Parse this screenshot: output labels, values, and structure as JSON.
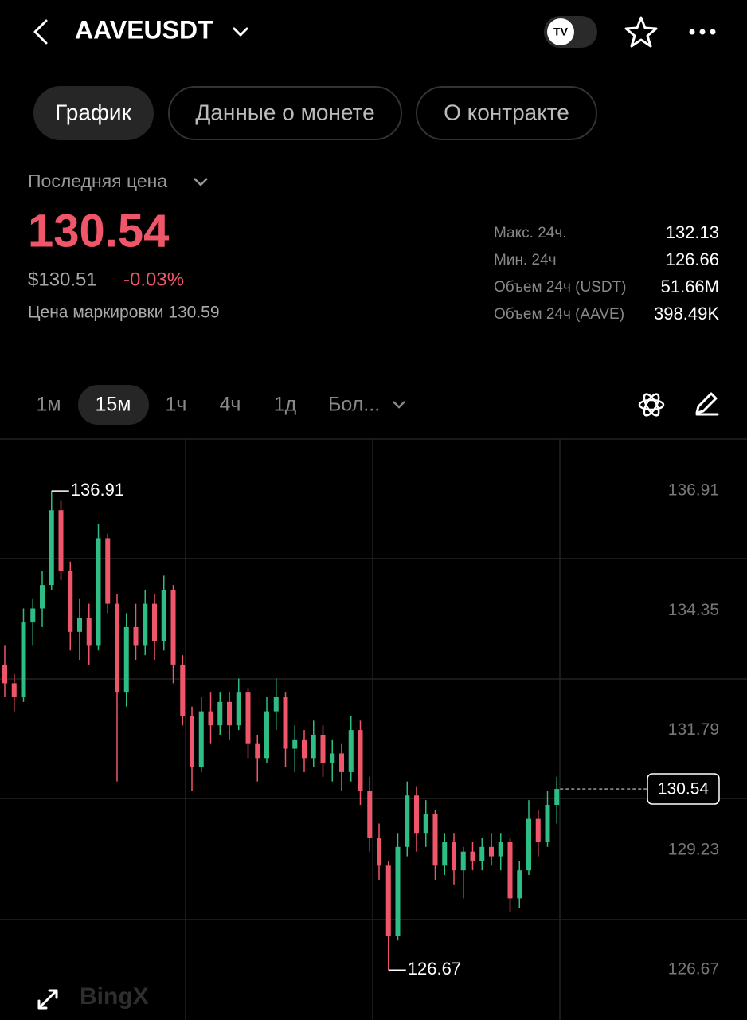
{
  "header": {
    "title": "AAVEUSDT"
  },
  "tabs": [
    "График",
    "Данные о монете",
    "О контракте"
  ],
  "price": {
    "label": "Последняя цена",
    "last": "130.54",
    "usd": "$130.51",
    "change": "-0.03%",
    "mark": "Цена маркировки 130.59"
  },
  "stats": [
    {
      "label": "Макс. 24ч.",
      "value": "132.13"
    },
    {
      "label": "Мин. 24ч",
      "value": "126.66"
    },
    {
      "label": "Объем 24ч (USDT)",
      "value": "51.66M"
    },
    {
      "label": "Объем 24ч (AAVE)",
      "value": "398.49K"
    }
  ],
  "timeframes": [
    "1м",
    "15м",
    "1ч",
    "4ч",
    "1д",
    "Бол..."
  ],
  "watermark": "BingX",
  "chart_data": {
    "type": "candlestick",
    "up_color": "#2ebd85",
    "down_color": "#f0566a",
    "ylim": [
      125.6,
      138.02
    ],
    "yticks": [
      136.91,
      134.35,
      131.79,
      129.23,
      126.67
    ],
    "candles": [
      [
        133.2,
        133.6,
        132.5,
        132.8
      ],
      [
        132.8,
        133.0,
        132.2,
        132.5
      ],
      [
        132.5,
        134.4,
        132.4,
        134.1
      ],
      [
        134.1,
        134.6,
        133.6,
        134.4
      ],
      [
        134.4,
        135.2,
        134.0,
        134.9
      ],
      [
        134.9,
        136.91,
        134.8,
        136.5
      ],
      [
        136.5,
        136.7,
        135.0,
        135.2
      ],
      [
        135.2,
        135.4,
        133.5,
        133.9
      ],
      [
        133.9,
        134.6,
        133.3,
        134.2
      ],
      [
        134.2,
        134.5,
        133.2,
        133.6
      ],
      [
        133.6,
        136.2,
        133.5,
        135.9
      ],
      [
        135.9,
        136.0,
        134.3,
        134.5
      ],
      [
        134.5,
        134.7,
        130.7,
        132.6
      ],
      [
        132.6,
        134.3,
        132.3,
        134.0
      ],
      [
        134.0,
        134.5,
        133.3,
        133.6
      ],
      [
        133.6,
        134.8,
        133.4,
        134.5
      ],
      [
        134.5,
        134.7,
        133.3,
        133.7
      ],
      [
        133.7,
        135.1,
        133.5,
        134.8
      ],
      [
        134.8,
        134.9,
        132.8,
        133.2
      ],
      [
        133.2,
        133.4,
        131.9,
        132.1
      ],
      [
        132.1,
        132.3,
        130.5,
        131.0
      ],
      [
        131.0,
        132.5,
        130.9,
        132.2
      ],
      [
        132.2,
        132.6,
        131.5,
        131.9
      ],
      [
        131.9,
        132.6,
        131.7,
        132.4
      ],
      [
        132.4,
        132.6,
        131.6,
        131.9
      ],
      [
        131.9,
        132.9,
        131.8,
        132.6
      ],
      [
        132.6,
        132.7,
        131.2,
        131.5
      ],
      [
        131.5,
        131.7,
        130.7,
        131.2
      ],
      [
        131.2,
        132.5,
        131.1,
        132.2
      ],
      [
        132.2,
        132.9,
        131.8,
        132.5
      ],
      [
        132.5,
        132.6,
        131.0,
        131.4
      ],
      [
        131.4,
        131.9,
        130.9,
        131.6
      ],
      [
        131.6,
        131.8,
        130.9,
        131.2
      ],
      [
        131.2,
        132.0,
        131.0,
        131.7
      ],
      [
        131.7,
        131.9,
        130.8,
        131.1
      ],
      [
        131.1,
        131.6,
        130.7,
        131.3
      ],
      [
        131.3,
        131.5,
        130.5,
        130.9
      ],
      [
        130.9,
        132.1,
        130.7,
        131.8
      ],
      [
        131.8,
        132.0,
        130.2,
        130.5
      ],
      [
        130.5,
        130.8,
        129.2,
        129.5
      ],
      [
        129.5,
        129.8,
        128.6,
        128.9
      ],
      [
        128.9,
        129.0,
        126.67,
        127.4
      ],
      [
        127.4,
        129.6,
        127.3,
        129.3
      ],
      [
        129.3,
        130.7,
        129.1,
        130.4
      ],
      [
        130.4,
        130.6,
        129.2,
        129.6
      ],
      [
        129.6,
        130.3,
        129.3,
        130.0
      ],
      [
        130.0,
        130.1,
        128.6,
        128.9
      ],
      [
        128.9,
        129.6,
        128.7,
        129.4
      ],
      [
        129.4,
        129.6,
        128.5,
        128.8
      ],
      [
        128.8,
        129.3,
        128.2,
        129.2
      ],
      [
        129.2,
        129.4,
        128.8,
        129.0
      ],
      [
        129.0,
        129.5,
        128.8,
        129.3
      ],
      [
        129.3,
        129.6,
        128.9,
        129.1
      ],
      [
        129.1,
        129.6,
        128.8,
        129.4
      ],
      [
        129.4,
        129.5,
        127.9,
        128.2
      ],
      [
        128.2,
        129.0,
        128.0,
        128.8
      ],
      [
        128.8,
        130.3,
        128.7,
        129.9
      ],
      [
        129.9,
        130.1,
        129.1,
        129.4
      ],
      [
        129.4,
        130.5,
        129.3,
        130.2
      ],
      [
        130.2,
        130.8,
        129.8,
        130.54
      ]
    ]
  }
}
